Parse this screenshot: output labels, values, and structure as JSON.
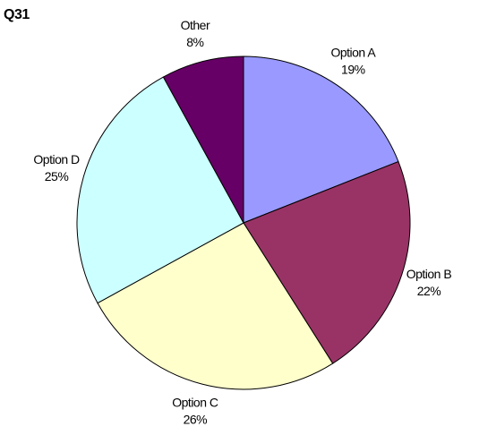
{
  "chart_data": {
    "type": "pie",
    "title": "Q31",
    "categories": [
      "Option A",
      "Option B",
      "Option C",
      "Option D",
      "Other"
    ],
    "values": [
      19,
      22,
      26,
      25,
      8
    ],
    "value_labels": [
      "19%",
      "22%",
      "26%",
      "25%",
      "8%"
    ],
    "colors": [
      "#9999ff",
      "#993366",
      "#ffffcc",
      "#ccffff",
      "#660066"
    ]
  }
}
